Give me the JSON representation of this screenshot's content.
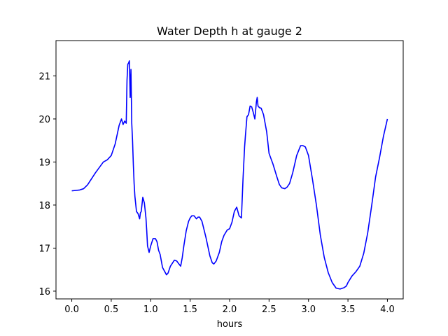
{
  "chart_data": {
    "type": "line",
    "title": "Water Depth h at gauge 2",
    "xlabel": "hours",
    "ylabel": "",
    "xlim": [
      -0.2,
      4.2
    ],
    "ylim": [
      15.82,
      21.82
    ],
    "xticks": [
      0.0,
      0.5,
      1.0,
      1.5,
      2.0,
      2.5,
      3.0,
      3.5,
      4.0
    ],
    "xtick_labels": [
      "0.0",
      "0.5",
      "1.0",
      "1.5",
      "2.0",
      "2.5",
      "3.0",
      "3.5",
      "4.0"
    ],
    "yticks": [
      16,
      17,
      18,
      19,
      20,
      21
    ],
    "ytick_labels": [
      "16",
      "17",
      "18",
      "19",
      "20",
      "21"
    ],
    "grid": false,
    "color": "#0000ff",
    "x": [
      0.0,
      0.1,
      0.15,
      0.2,
      0.3,
      0.4,
      0.45,
      0.5,
      0.55,
      0.6,
      0.63,
      0.65,
      0.67,
      0.69,
      0.7,
      0.71,
      0.72,
      0.73,
      0.74,
      0.75,
      0.76,
      0.77,
      0.78,
      0.79,
      0.8,
      0.82,
      0.84,
      0.86,
      0.87,
      0.88,
      0.9,
      0.92,
      0.94,
      0.95,
      0.96,
      0.98,
      1.0,
      1.03,
      1.06,
      1.08,
      1.1,
      1.12,
      1.15,
      1.2,
      1.22,
      1.25,
      1.3,
      1.33,
      1.35,
      1.38,
      1.4,
      1.42,
      1.45,
      1.48,
      1.5,
      1.52,
      1.55,
      1.58,
      1.6,
      1.62,
      1.65,
      1.7,
      1.75,
      1.78,
      1.8,
      1.83,
      1.87,
      1.9,
      1.93,
      1.97,
      2.0,
      2.03,
      2.06,
      2.09,
      2.12,
      2.15,
      2.17,
      2.19,
      2.2,
      2.22,
      2.24,
      2.26,
      2.28,
      2.3,
      2.32,
      2.34,
      2.35,
      2.36,
      2.38,
      2.4,
      2.43,
      2.47,
      2.5,
      2.55,
      2.6,
      2.63,
      2.66,
      2.7,
      2.73,
      2.76,
      2.8,
      2.85,
      2.9,
      2.93,
      2.96,
      3.0,
      3.05,
      3.1,
      3.15,
      3.2,
      3.25,
      3.3,
      3.35,
      3.4,
      3.45,
      3.48,
      3.5,
      3.55,
      3.6,
      3.65,
      3.7,
      3.75,
      3.8,
      3.85,
      3.9,
      3.95,
      4.0
    ],
    "y": [
      18.33,
      18.35,
      18.38,
      18.47,
      18.75,
      19.0,
      19.05,
      19.15,
      19.42,
      19.85,
      20.0,
      19.87,
      19.95,
      19.9,
      20.9,
      21.27,
      21.3,
      21.35,
      20.5,
      21.15,
      19.9,
      19.5,
      18.95,
      18.5,
      18.2,
      17.85,
      17.8,
      17.68,
      17.82,
      17.85,
      18.18,
      18.05,
      17.7,
      17.4,
      17.05,
      16.9,
      17.05,
      17.22,
      17.22,
      17.15,
      16.95,
      16.85,
      16.55,
      16.38,
      16.42,
      16.58,
      16.72,
      16.7,
      16.65,
      16.58,
      16.78,
      17.05,
      17.4,
      17.62,
      17.7,
      17.75,
      17.75,
      17.68,
      17.72,
      17.72,
      17.62,
      17.25,
      16.82,
      16.66,
      16.63,
      16.7,
      16.9,
      17.15,
      17.3,
      17.42,
      17.45,
      17.6,
      17.85,
      17.95,
      17.75,
      17.7,
      18.6,
      19.35,
      19.6,
      20.05,
      20.1,
      20.3,
      20.28,
      20.15,
      20.0,
      20.4,
      20.5,
      20.3,
      20.26,
      20.25,
      20.1,
      19.7,
      19.2,
      18.95,
      18.65,
      18.48,
      18.4,
      18.38,
      18.42,
      18.5,
      18.75,
      19.15,
      19.38,
      19.38,
      19.35,
      19.15,
      18.6,
      18.0,
      17.3,
      16.78,
      16.43,
      16.2,
      16.07,
      16.05,
      16.08,
      16.12,
      16.2,
      16.35,
      16.45,
      16.58,
      16.88,
      17.35,
      17.98,
      18.65,
      19.1,
      19.6,
      20.0
    ]
  }
}
